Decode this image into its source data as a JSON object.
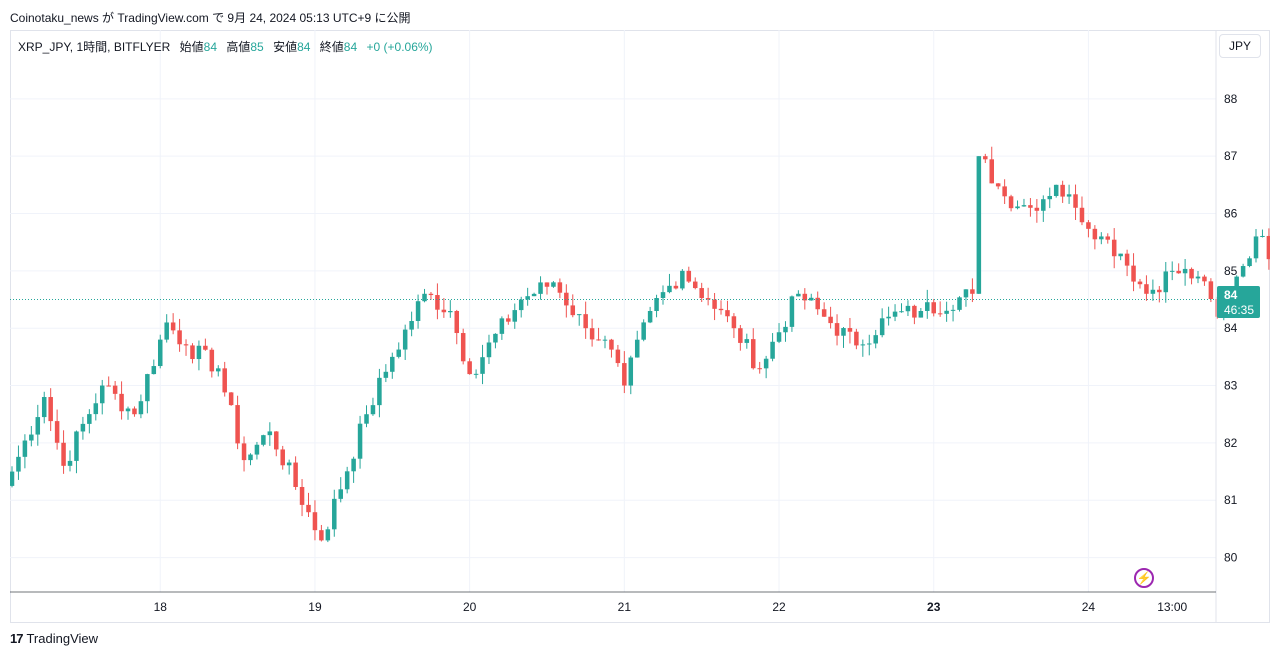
{
  "attribution": "Coinotaku_news が TradingView.com で 9月 24, 2024 05:13 UTC+9 に公開",
  "legend": {
    "symbol": "XRP_JPY, 1時間, BITFLYER",
    "open_label": "始値",
    "open": "84",
    "high_label": "高値",
    "high": "85",
    "low_label": "安値",
    "low": "84",
    "close_label": "終値",
    "close": "84",
    "change": "+0 (+0.06%)"
  },
  "currency_button": "JPY",
  "price_tag": {
    "price": "84",
    "countdown": "46:35"
  },
  "brand": {
    "logo": "17",
    "name": "TradingView"
  },
  "colors": {
    "up": "#26a69a",
    "down": "#ef5350",
    "grid": "#f0f3fa",
    "last_line": "#26a69a",
    "alert": "#9c27b0"
  },
  "icons": {
    "alert": "lightning-icon"
  },
  "chart_data": {
    "type": "candlestick",
    "ylim": [
      79.4,
      89.2
    ],
    "y_ticks": [
      "80",
      "81",
      "82",
      "83",
      "84",
      "85",
      "86",
      "87",
      "88"
    ],
    "x_ticks": [
      {
        "label": "18",
        "day": 18,
        "hour": 0
      },
      {
        "label": "19",
        "day": 19,
        "hour": 0
      },
      {
        "label": "20",
        "day": 20,
        "hour": 0
      },
      {
        "label": "21",
        "day": 21,
        "hour": 0
      },
      {
        "label": "22",
        "day": 22,
        "hour": 0
      },
      {
        "label": "23",
        "day": 23,
        "hour": 0,
        "bold": true
      },
      {
        "label": "24",
        "day": 24,
        "hour": 0
      },
      {
        "label": "13:00",
        "day": 24,
        "hour": 13
      }
    ],
    "x_start": {
      "day": 17,
      "hour": 1
    },
    "x_end": {
      "day": 24,
      "hour": 17
    },
    "last_price": 84.5,
    "key_points": [
      {
        "i": 0,
        "p": 81.5
      },
      {
        "i": 5,
        "p": 82.8
      },
      {
        "i": 8,
        "p": 81.6
      },
      {
        "i": 14,
        "p": 83.0
      },
      {
        "i": 19,
        "p": 82.5
      },
      {
        "i": 24,
        "p": 84.1
      },
      {
        "i": 27,
        "p": 83.7
      },
      {
        "i": 32,
        "p": 83.3
      },
      {
        "i": 36,
        "p": 81.7
      },
      {
        "i": 40,
        "p": 82.2
      },
      {
        "i": 48,
        "p": 80.3
      },
      {
        "i": 55,
        "p": 82.5
      },
      {
        "i": 59,
        "p": 83.5
      },
      {
        "i": 64,
        "p": 84.6
      },
      {
        "i": 68,
        "p": 84.3
      },
      {
        "i": 71,
        "p": 83.2
      },
      {
        "i": 79,
        "p": 84.5
      },
      {
        "i": 84,
        "p": 84.8
      },
      {
        "i": 89,
        "p": 84.0
      },
      {
        "i": 92,
        "p": 83.8
      },
      {
        "i": 95,
        "p": 83.0
      },
      {
        "i": 99,
        "p": 84.3
      },
      {
        "i": 104,
        "p": 85.0
      },
      {
        "i": 108,
        "p": 84.5
      },
      {
        "i": 112,
        "p": 84.0
      },
      {
        "i": 116,
        "p": 83.3
      },
      {
        "i": 122,
        "p": 84.6
      },
      {
        "i": 126,
        "p": 84.2
      },
      {
        "i": 131,
        "p": 83.7
      },
      {
        "i": 136,
        "p": 84.2
      },
      {
        "i": 141,
        "p": 84.3
      },
      {
        "i": 149,
        "p": 84.6
      },
      {
        "i": 150,
        "p": 87.0
      },
      {
        "i": 154,
        "p": 86.3
      },
      {
        "i": 158,
        "p": 86.1
      },
      {
        "i": 162,
        "p": 86.5
      },
      {
        "i": 165,
        "p": 86.1
      },
      {
        "i": 169,
        "p": 85.6
      },
      {
        "i": 172,
        "p": 85.3
      },
      {
        "i": 176,
        "p": 84.6
      },
      {
        "i": 180,
        "p": 85.0
      },
      {
        "i": 184,
        "p": 84.9
      },
      {
        "i": 187,
        "p": 84.2
      },
      {
        "i": 190,
        "p": 84.9
      },
      {
        "i": 193,
        "p": 85.6
      },
      {
        "i": 197,
        "p": 85.1
      },
      {
        "i": 200,
        "p": 84.3
      },
      {
        "i": 203,
        "p": 84.6
      },
      {
        "i": 206,
        "p": 84.5
      },
      {
        "i": 208,
        "p": 84.1
      },
      {
        "i": 211,
        "p": 84.5
      }
    ]
  }
}
